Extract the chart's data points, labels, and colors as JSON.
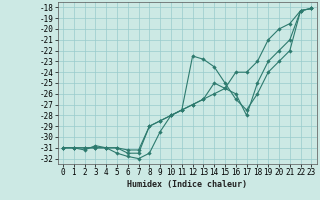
{
  "xlabel": "Humidex (Indice chaleur)",
  "bg_color": "#cce9e4",
  "line_color": "#2d7a6e",
  "grid_color": "#99cccc",
  "x_ticks": [
    0,
    1,
    2,
    3,
    4,
    5,
    6,
    7,
    8,
    9,
    10,
    11,
    12,
    13,
    14,
    15,
    16,
    17,
    18,
    19,
    20,
    21,
    22,
    23
  ],
  "y_ticks": [
    -18,
    -19,
    -20,
    -21,
    -22,
    -23,
    -24,
    -25,
    -26,
    -27,
    -28,
    -29,
    -30,
    -31,
    -32
  ],
  "xlim": [
    -0.5,
    23.5
  ],
  "ylim": [
    -32.5,
    -17.5
  ],
  "series": [
    {
      "x": [
        0,
        1,
        2,
        3,
        4,
        5,
        6,
        7,
        8,
        9,
        10,
        11,
        12,
        13,
        14,
        15,
        16,
        17,
        18,
        19,
        20,
        21,
        22,
        23
      ],
      "y": [
        -31,
        -31,
        -31.2,
        -30.8,
        -31,
        -31.5,
        -31.8,
        -32,
        -31.5,
        -29.5,
        -28,
        -27.5,
        -22.5,
        -22.8,
        -23.5,
        -25,
        -26.5,
        -27.5,
        -26,
        -24,
        -23,
        -22,
        -18.3,
        -18.1
      ]
    },
    {
      "x": [
        0,
        1,
        2,
        3,
        4,
        5,
        6,
        7,
        8,
        9,
        10,
        11,
        12,
        13,
        14,
        15,
        16,
        17,
        18,
        19,
        20,
        21,
        22,
        23
      ],
      "y": [
        -31,
        -31,
        -31,
        -31,
        -31,
        -31,
        -31.5,
        -31.5,
        -29,
        -28.5,
        -28,
        -27.5,
        -27,
        -26.5,
        -25,
        -25.5,
        -26,
        -28,
        -25,
        -23,
        -22,
        -21,
        -18.3,
        -18.1
      ]
    },
    {
      "x": [
        0,
        1,
        2,
        3,
        4,
        5,
        6,
        7,
        8,
        9,
        10,
        11,
        12,
        13,
        14,
        15,
        16,
        17,
        18,
        19,
        20,
        21,
        22,
        23
      ],
      "y": [
        -31,
        -31,
        -31,
        -31,
        -31,
        -31,
        -31.2,
        -31.2,
        -29,
        -28.5,
        -28,
        -27.5,
        -27,
        -26.5,
        -26,
        -25.5,
        -24,
        -24,
        -23,
        -21,
        -20,
        -19.5,
        -18.3,
        -18.1
      ]
    }
  ]
}
